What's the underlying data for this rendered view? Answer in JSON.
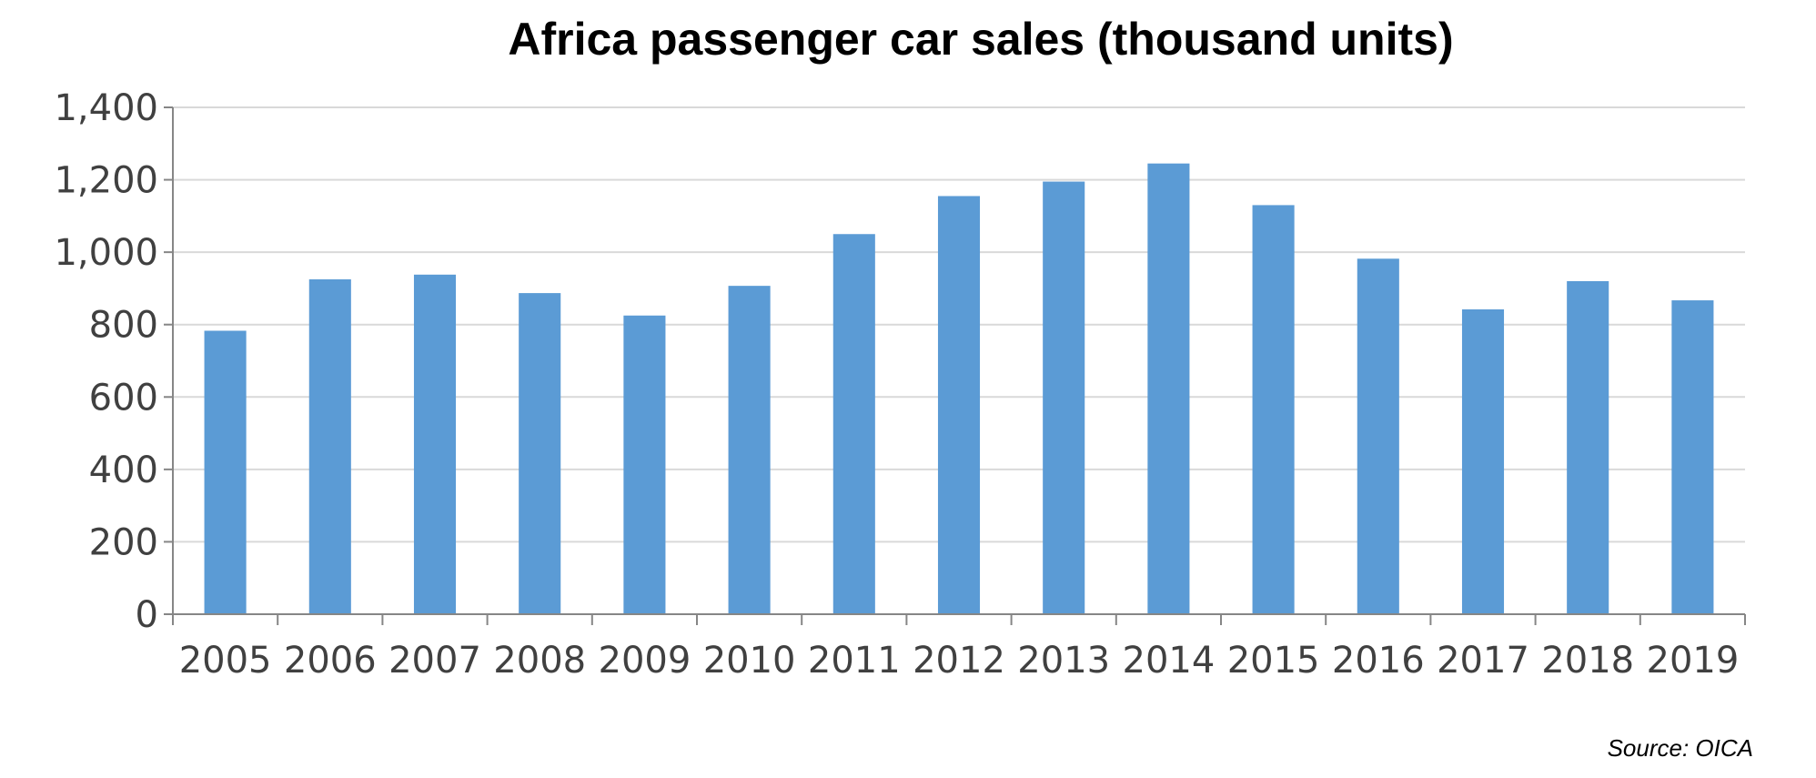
{
  "chart_data": {
    "type": "bar",
    "title": "Africa passenger car sales (thousand units)",
    "xlabel": "",
    "ylabel": "",
    "categories": [
      "2005",
      "2006",
      "2007",
      "2008",
      "2009",
      "2010",
      "2011",
      "2012",
      "2013",
      "2014",
      "2015",
      "2016",
      "2017",
      "2018",
      "2019"
    ],
    "values": [
      783,
      925,
      938,
      887,
      825,
      907,
      1050,
      1155,
      1195,
      1245,
      1130,
      982,
      842,
      920,
      867
    ],
    "ylim": [
      0,
      1400
    ],
    "yticks": [
      0,
      200,
      400,
      600,
      800,
      1000,
      1200,
      1400
    ],
    "ytick_labels": [
      "0",
      "200",
      "400",
      "600",
      "800",
      "1,000",
      "1,200",
      "1,400"
    ],
    "grid": true,
    "legend": "none",
    "source": "Source: OICA",
    "colors": {
      "bar": "#5b9bd5",
      "grid": "#d9d9d9",
      "axis": "#868686",
      "tick_text": "#404040"
    }
  }
}
